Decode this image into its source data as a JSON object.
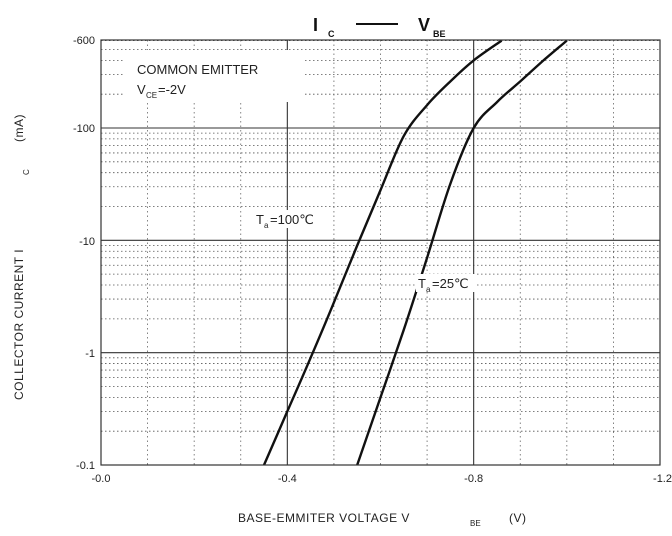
{
  "chart_data": {
    "type": "line",
    "title": {
      "left_main": "I",
      "left_sub": "C",
      "right_main": "V",
      "right_sub": "BE"
    },
    "xlabel": {
      "main": "BASE-EMMITER VOLTAGE  V",
      "sub": "BE",
      "unit": "(V)"
    },
    "ylabel": {
      "main": "COLLECTOR CURRENT   I",
      "sub": "C",
      "unit": "(mA)"
    },
    "x_ticks": [
      "-0.0",
      "-0.4",
      "-0.8",
      "-1.2"
    ],
    "y_ticks": [
      "-0.1",
      "-1",
      "-10",
      "-100",
      "-600"
    ],
    "xlim": [
      0.0,
      -1.2
    ],
    "ylim": [
      -0.1,
      -600
    ],
    "y_scale": "log",
    "grid": true,
    "annotation": {
      "line1": "COMMON EMITTER",
      "line2_main": "V",
      "line2_sub": "CE",
      "line2_rest": "=-2V"
    },
    "series": [
      {
        "name": "Ta=100°C",
        "label_main": "T",
        "label_sub": "a",
        "label_rest": "=100℃",
        "x": [
          -0.35,
          -0.4,
          -0.45,
          -0.5,
          -0.55,
          -0.6,
          -0.65,
          -0.7,
          -0.75,
          -0.8,
          -0.86
        ],
        "y": [
          -0.1,
          -0.3,
          -0.9,
          -2.8,
          -9,
          -28,
          -85,
          -160,
          -260,
          -400,
          -600
        ]
      },
      {
        "name": "Ta=25°C",
        "label_main": "T",
        "label_sub": "a",
        "label_rest": "=25℃",
        "x": [
          -0.55,
          -0.6,
          -0.65,
          -0.7,
          -0.75,
          -0.8,
          -0.85,
          -0.9,
          -0.95,
          -1.0
        ],
        "y": [
          -0.1,
          -0.4,
          -1.6,
          -7,
          -32,
          -100,
          -170,
          -260,
          -400,
          -600
        ]
      }
    ]
  }
}
